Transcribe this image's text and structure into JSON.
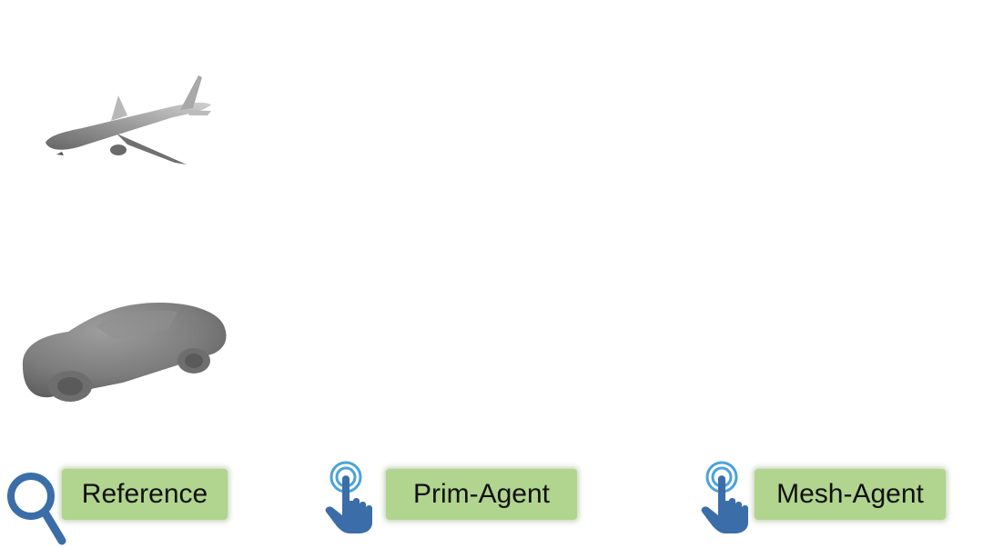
{
  "figures": [
    {
      "icon": "airplane-depth-render",
      "label": "airplane"
    },
    {
      "icon": "car-depth-render",
      "label": "car"
    }
  ],
  "labels": {
    "reference": "Reference",
    "prim_agent": "Prim-Agent",
    "mesh_agent": "Mesh-Agent"
  },
  "icons": {
    "reference": "magnifier-icon",
    "prim_agent": "touch-hand-icon",
    "mesh_agent": "touch-hand-icon"
  },
  "colors": {
    "tag_background": "#b1d48f",
    "icon_blue": "#3b6ea8",
    "ripple_blue": "#4aa3d8",
    "render_gray": "#8a8a8a"
  }
}
